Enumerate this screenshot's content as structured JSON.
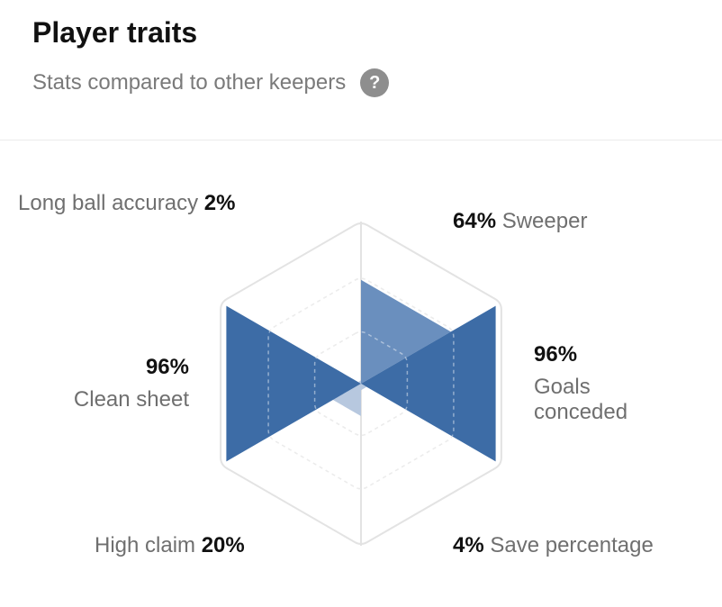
{
  "header": {
    "title": "Player traits",
    "subtitle": "Stats compared to other keepers",
    "help_glyph": "?",
    "help_icon": "question-mark-circle-icon"
  },
  "chart_data": {
    "type": "radar",
    "title": "Player traits",
    "subtitle": "Stats compared to other keepers",
    "categories": [
      "Sweeper",
      "Goals conceded",
      "Save percentage",
      "High claim",
      "Clean sheet",
      "Long ball accuracy"
    ],
    "series": [
      {
        "values": [
          64,
          96,
          4,
          20,
          96,
          2
        ]
      }
    ],
    "range": [
      0,
      100
    ],
    "grid_levels": [
      1,
      0.66,
      0.33
    ],
    "value_labels": {
      "sweeper": "64%",
      "goals_conceded": "96%",
      "save_percentage": "4%",
      "high_claim": "20%",
      "clean_sheet": "96%",
      "long_ball_accuracy": "2%"
    },
    "axis_labels": {
      "sweeper": "Sweeper",
      "goals_conceded_line1": "Goals",
      "goals_conceded_line2": "conceded",
      "save_percentage": "Save percentage",
      "high_claim": "High claim",
      "clean_sheet": "Clean sheet",
      "long_ball_accuracy": "Long ball accuracy"
    },
    "colors": {
      "strong": "#3d6ca6",
      "medium": "#6a8fbe",
      "light": "#b7c8df",
      "outline": "#e3e3e3",
      "grid": "#dddddd"
    }
  }
}
